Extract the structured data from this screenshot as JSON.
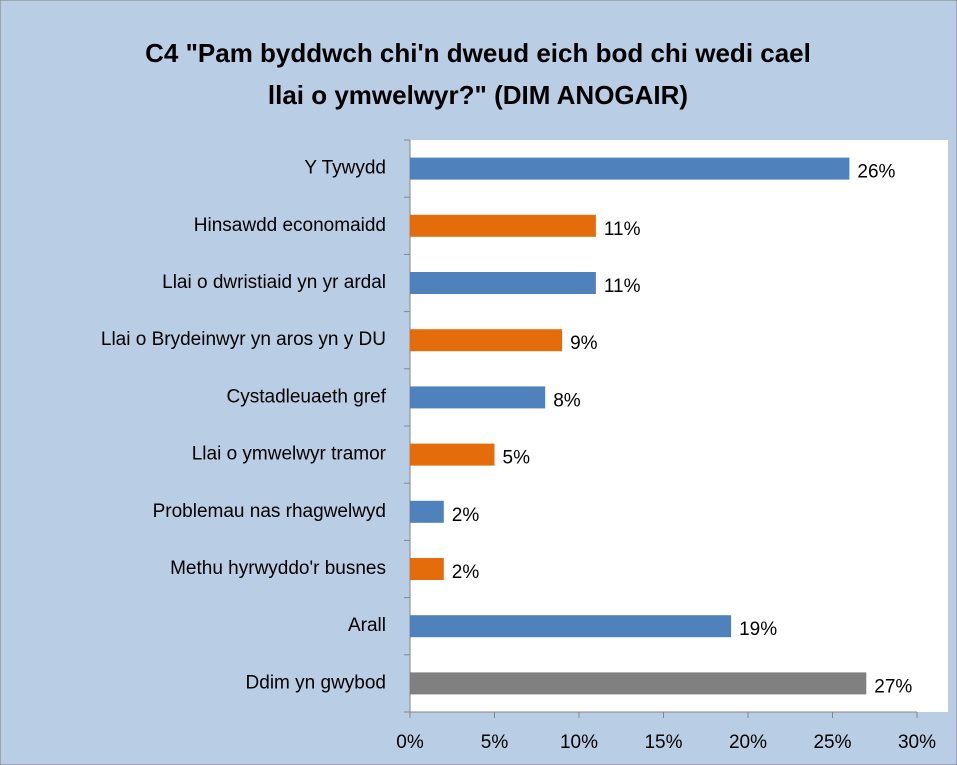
{
  "chart_data": {
    "type": "bar",
    "orientation": "horizontal",
    "title": [
      "C4 \"Pam byddwch chi'n dweud eich bod chi wedi cael",
      "llai o ymwelwyr?\" (DIM ANOGAIR)"
    ],
    "categories": [
      "Y Tywydd",
      "Hinsawdd economaidd",
      "Llai o dwristiaid yn yr ardal",
      "Llai o Brydeinwyr yn aros yn y DU",
      "Cystadleuaeth gref",
      "Llai o ymwelwyr tramor",
      "Problemau nas rhagwelwyd",
      "Methu hyrwyddo'r busnes",
      "Arall",
      "Ddim yn gwybod"
    ],
    "values": [
      26,
      11,
      11,
      9,
      8,
      5,
      2,
      2,
      19,
      27
    ],
    "value_labels": [
      "26%",
      "11%",
      "11%",
      "9%",
      "8%",
      "5%",
      "2%",
      "2%",
      "19%",
      "27%"
    ],
    "colors": [
      "#4f81bd",
      "#e46c0a",
      "#4f81bd",
      "#e46c0a",
      "#4f81bd",
      "#e46c0a",
      "#4f81bd",
      "#e46c0a",
      "#4f81bd",
      "#808080"
    ],
    "xlim": [
      0,
      30
    ],
    "xticks": [
      {
        "value": 0,
        "label": "0%"
      },
      {
        "value": 5,
        "label": "5%"
      },
      {
        "value": 10,
        "label": "10%"
      },
      {
        "value": 15,
        "label": "15%"
      },
      {
        "value": 20,
        "label": "20%"
      },
      {
        "value": 25,
        "label": "25%"
      },
      {
        "value": 30,
        "label": "30%"
      }
    ],
    "grid": false
  }
}
